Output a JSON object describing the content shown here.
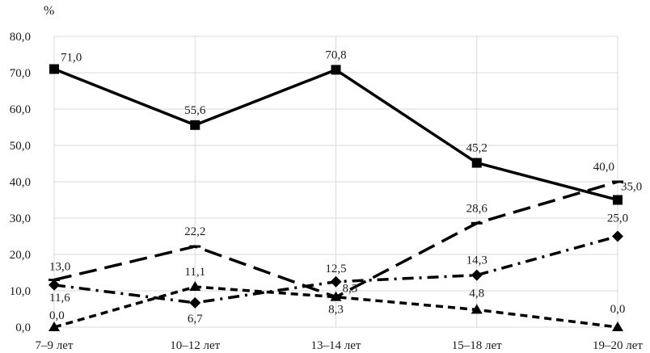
{
  "chart_data": {
    "type": "line",
    "unit_label": "%",
    "categories": [
      "7–9 лет",
      "10–12 лет",
      "13–14 лет",
      "15–18 лет",
      "19–20 лет"
    ],
    "y_ticks": [
      "0,0",
      "10,0",
      "20,0",
      "30,0",
      "40,0",
      "50,0",
      "60,0",
      "70,0",
      "80,0"
    ],
    "ylim": [
      0,
      80
    ],
    "grid": "horizontal",
    "legend": "none",
    "series": [
      {
        "style": "solid",
        "marker": "square",
        "color": "#000000",
        "values": [
          71.0,
          55.6,
          70.8,
          45.2,
          35.0
        ],
        "labels": [
          "71,0",
          "55,6",
          "70,8",
          "45,2",
          "35,0"
        ]
      },
      {
        "style": "long-dash",
        "marker": "dash",
        "color": "#000000",
        "values": [
          13.0,
          22.2,
          8.3,
          28.6,
          40.0
        ],
        "labels": [
          "13,0",
          "22,2",
          "8,3",
          "28,6",
          "40,0"
        ]
      },
      {
        "style": "dash-dot",
        "marker": "diamond",
        "color": "#000000",
        "values": [
          11.6,
          6.7,
          12.5,
          14.3,
          25.0
        ],
        "labels": [
          "11,6",
          "6,7",
          "12,5",
          "14,3",
          "25,0"
        ]
      },
      {
        "style": "short-dash",
        "marker": "triangle",
        "color": "#000000",
        "values": [
          0.0,
          11.1,
          8.3,
          4.8,
          0.0
        ],
        "labels": [
          "0,0",
          "11,1",
          "8,3",
          "4,8",
          "0,0"
        ]
      }
    ]
  }
}
